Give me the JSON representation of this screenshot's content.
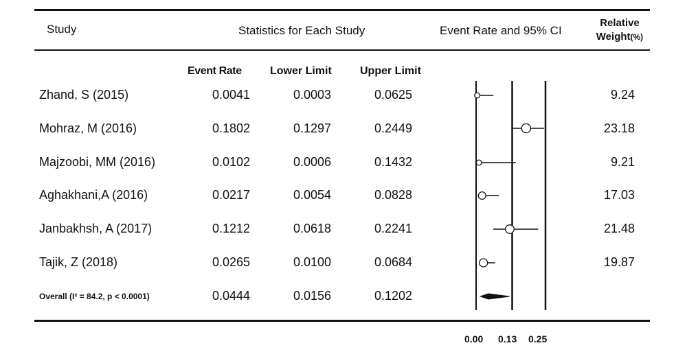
{
  "header": {
    "study": "Study",
    "stats": "Statistics for Each Study",
    "ci": "Event Rate and 95% CI",
    "weight_line1": "Relative",
    "weight_line2": "Weight",
    "weight_unit": "(%)"
  },
  "subheader": {
    "event_rate": "Event Rate",
    "lower_limit": "Lower Limit",
    "upper_limit": "Upper Limit"
  },
  "rows": [
    {
      "study": "Zhand, S  (2015)",
      "event_rate": "0.0041",
      "lower": "0.0003",
      "upper": "0.0625",
      "weight": "9.24"
    },
    {
      "study": "Mohraz, M  (2016)",
      "event_rate": "0.1802",
      "lower": "0.1297",
      "upper": "0.2449",
      "weight": "23.18"
    },
    {
      "study": "Majzoobi, MM  (2016)",
      "event_rate": "0.0102",
      "lower": "0.0006",
      "upper": "0.1432",
      "weight": "9.21"
    },
    {
      "study": "Aghakhani,A  (2016)",
      "event_rate": "0.0217",
      "lower": "0.0054",
      "upper": "0.0828",
      "weight": "17.03"
    },
    {
      "study": "Janbakhsh, A  (2017)",
      "event_rate": "0.1212",
      "lower": "0.0618",
      "upper": "0.2241",
      "weight": "21.48"
    },
    {
      "study": "Tajik, Z  (2018)",
      "event_rate": "0.0265",
      "lower": "0.0100",
      "upper": "0.0684",
      "weight": "19.87"
    }
  ],
  "overall": {
    "label": "Overall (I² = 84.2, p < 0.0001)",
    "event_rate": "0.0444",
    "lower": "0.0156",
    "upper": "0.1202"
  },
  "x_ticks": [
    "0.00",
    "0.13",
    "0.25"
  ],
  "chart_data": {
    "type": "forest",
    "x_ticks": [
      0.0,
      0.13,
      0.25
    ],
    "xlim": [
      0.0,
      0.25
    ],
    "reference_lines": [
      0.13,
      0.25
    ],
    "studies": [
      {
        "name": "Zhand, S  (2015)",
        "estimate": 0.0041,
        "lower": 0.0003,
        "upper": 0.0625,
        "weight": 9.24
      },
      {
        "name": "Mohraz, M  (2016)",
        "estimate": 0.1802,
        "lower": 0.1297,
        "upper": 0.2449,
        "weight": 23.18
      },
      {
        "name": "Majzoobi, MM  (2016)",
        "estimate": 0.0102,
        "lower": 0.0006,
        "upper": 0.1432,
        "weight": 9.21
      },
      {
        "name": "Aghakhani,A  (2016)",
        "estimate": 0.0217,
        "lower": 0.0054,
        "upper": 0.0828,
        "weight": 17.03
      },
      {
        "name": "Janbakhsh, A  (2017)",
        "estimate": 0.1212,
        "lower": 0.0618,
        "upper": 0.2241,
        "weight": 21.48
      },
      {
        "name": "Tajik, Z  (2018)",
        "estimate": 0.0265,
        "lower": 0.01,
        "upper": 0.0684,
        "weight": 19.87
      }
    ],
    "overall": {
      "name": "Overall",
      "estimate": 0.0444,
      "lower": 0.0156,
      "upper": 0.1202,
      "i2": 84.2,
      "p": "< 0.0001"
    }
  }
}
